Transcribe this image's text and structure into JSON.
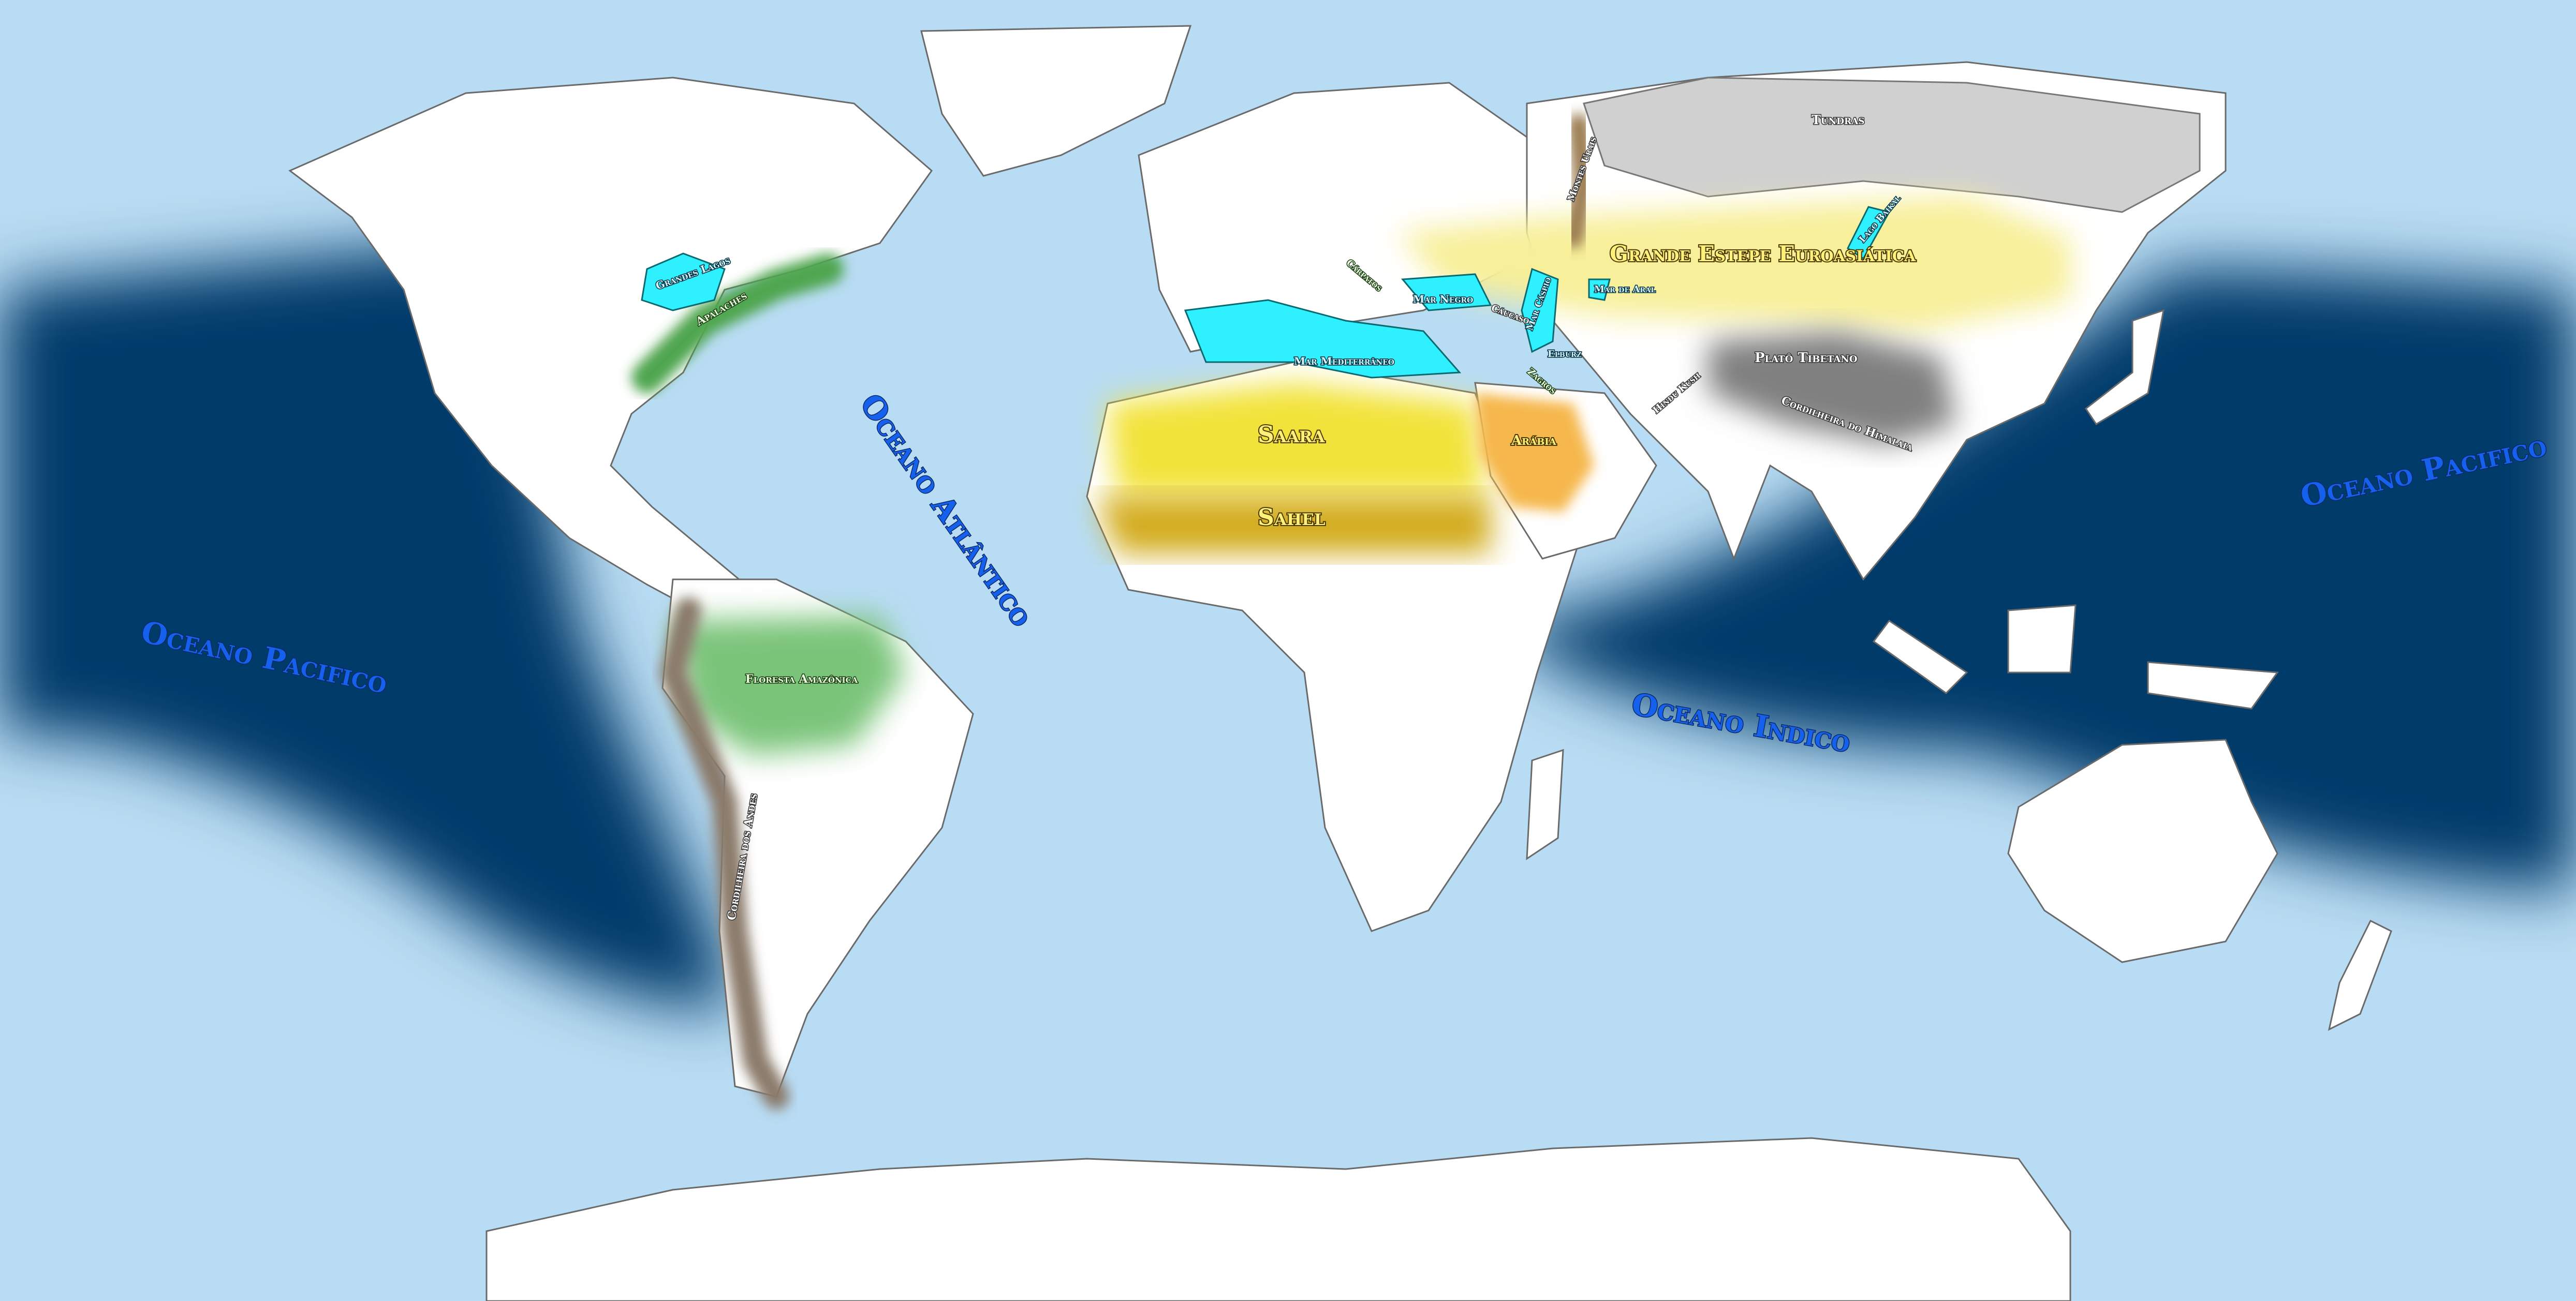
{
  "map": {
    "colors": {
      "sea": "#b8dcf3",
      "deep_current": "#003a6a",
      "land": "#ffffff",
      "tundra": "#d0d0d0",
      "steppe": "#f7ef99",
      "desert": "#f2e33a",
      "sahel": "#d3ac1a",
      "arabia": "#f6b84e",
      "forest": "#5cb35c",
      "amazon": "#7ac47a",
      "inland_water": "#2ff0ff",
      "mountain": "#8a7a6a"
    },
    "oceans": {
      "pacific_west": "Oceano Pacifico",
      "pacific_east": "Oceano Pacifico",
      "atlantic": "Oceano Atlântico",
      "indian": "Oceano Indico"
    },
    "regions": {
      "steppe": "Grande Estepe Euroasiática",
      "sahara": "Saara",
      "sahel": "Sahel",
      "tundra": "Tundras",
      "amazon": "Floresta Amazônica",
      "andes": "Cordilheira dos Andes",
      "arabia": "Arábia",
      "tibet": "Platô Tibetano",
      "himalaya": "Cordilheira do Himalaia",
      "appalachians": "Apalaches",
      "great_lakes": "Grandes Lagos",
      "mediterranean": "Mar Mediterrâneo",
      "black_sea": "Mar Negro",
      "caspian": "Mar Cáspio",
      "aral": "Mar de Aral",
      "baikal": "Lago Baikal",
      "urals": "Montes Urais",
      "caucasus": "Cáucaso",
      "carpathians": "Cárpatos",
      "zagros": "Zagros",
      "elburz": "Elburz",
      "hindu_kush": "Hindu Kush"
    }
  }
}
